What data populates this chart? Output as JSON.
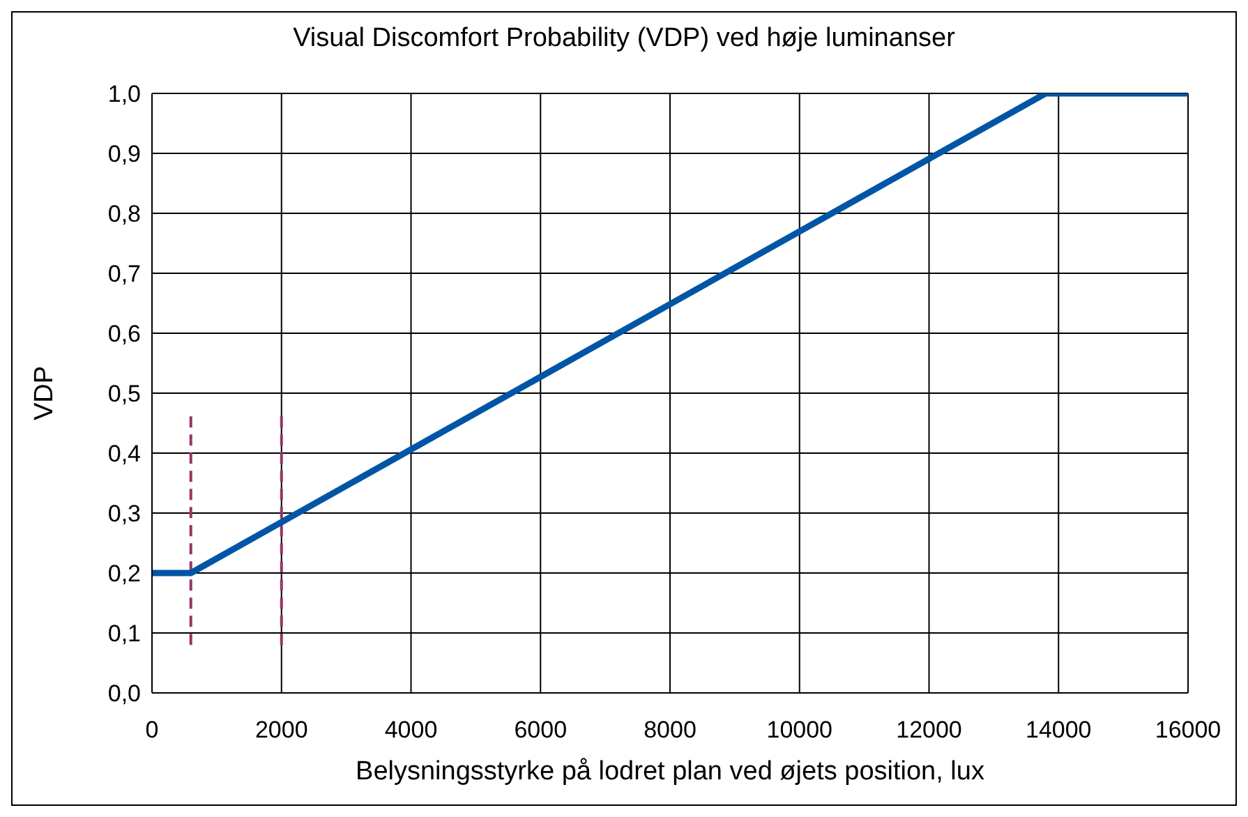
{
  "chart_data": {
    "type": "line",
    "title": "Visual Discomfort Probability (VDP) ved høje luminanser",
    "xlabel": "Belysningsstyrke på lodret plan ved øjets position, lux",
    "ylabel": "VDP",
    "x": [
      0,
      600,
      13800,
      16000
    ],
    "series": [
      {
        "color": "#0055a5",
        "values": [
          0.2,
          0.2,
          1.0,
          1.0
        ]
      }
    ],
    "xlim": [
      0,
      16000
    ],
    "xticks": [
      0,
      2000,
      4000,
      6000,
      8000,
      10000,
      12000,
      14000,
      16000
    ],
    "ylim": [
      0,
      1
    ],
    "yticks": [
      {
        "value": 0,
        "label": "0,0"
      },
      {
        "value": 0.1,
        "label": "0,1"
      },
      {
        "value": 0.2,
        "label": "0,2"
      },
      {
        "value": 0.3,
        "label": "0,3"
      },
      {
        "value": 0.4,
        "label": "0,4"
      },
      {
        "value": 0.5,
        "label": "0,5"
      },
      {
        "value": 0.6,
        "label": "0,6"
      },
      {
        "value": 0.7,
        "label": "0,7"
      },
      {
        "value": 0.8,
        "label": "0,8"
      },
      {
        "value": 0.9,
        "label": "0,9"
      },
      {
        "value": 1,
        "label": "1,0"
      }
    ],
    "ref_lines": [
      {
        "axis": "x",
        "value": 600,
        "color": "#993366",
        "line_style": "dashed"
      },
      {
        "axis": "x",
        "value": 2000,
        "color": "#993366",
        "line_style": "dashed"
      }
    ],
    "grid": true,
    "marker": "none",
    "line_style": "solid"
  }
}
